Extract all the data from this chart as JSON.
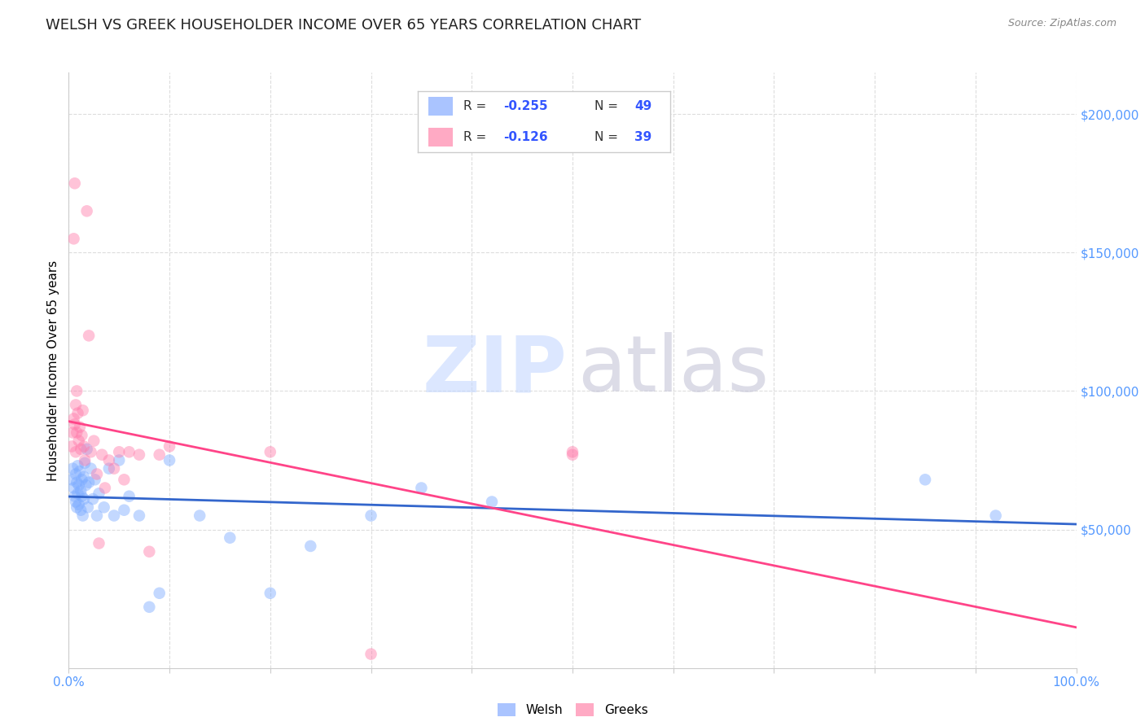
{
  "title": "WELSH VS GREEK HOUSEHOLDER INCOME OVER 65 YEARS CORRELATION CHART",
  "source": "Source: ZipAtlas.com",
  "ylabel": "Householder Income Over 65 years",
  "y_tick_labels": [
    "$50,000",
    "$100,000",
    "$150,000",
    "$200,000"
  ],
  "y_tick_values": [
    50000,
    100000,
    150000,
    200000
  ],
  "y_tick_color": "#5599ff",
  "ylim": [
    0,
    215000
  ],
  "xlim": [
    0,
    1.0
  ],
  "welsh_R": -0.255,
  "welsh_N": 49,
  "greek_R": -0.126,
  "greek_N": 39,
  "welsh_color": "#7aaaff",
  "greek_color": "#ff7aaa",
  "welsh_line_color": "#3366cc",
  "greek_line_color": "#ff4488",
  "marker_size": 110,
  "marker_alpha": 0.45,
  "legend_color_welsh": "#aac4ff",
  "legend_color_greek": "#ffaac4",
  "watermark_color_zip": "#c5d8ff",
  "watermark_color_atlas": "#c5c5d8",
  "welsh_x": [
    0.003,
    0.004,
    0.005,
    0.006,
    0.007,
    0.007,
    0.008,
    0.008,
    0.009,
    0.009,
    0.01,
    0.01,
    0.011,
    0.012,
    0.012,
    0.013,
    0.013,
    0.014,
    0.015,
    0.015,
    0.016,
    0.017,
    0.018,
    0.019,
    0.02,
    0.022,
    0.024,
    0.026,
    0.028,
    0.03,
    0.035,
    0.04,
    0.045,
    0.05,
    0.055,
    0.06,
    0.07,
    0.08,
    0.09,
    0.1,
    0.13,
    0.16,
    0.2,
    0.24,
    0.3,
    0.35,
    0.42,
    0.85,
    0.92
  ],
  "welsh_y": [
    68000,
    72000,
    65000,
    62000,
    70000,
    60000,
    67000,
    58000,
    73000,
    63000,
    66000,
    59000,
    71000,
    64000,
    57000,
    68000,
    62000,
    55000,
    69000,
    61000,
    74000,
    66000,
    79000,
    58000,
    67000,
    72000,
    61000,
    68000,
    55000,
    63000,
    58000,
    72000,
    55000,
    75000,
    57000,
    62000,
    55000,
    22000,
    27000,
    75000,
    55000,
    47000,
    27000,
    44000,
    55000,
    65000,
    60000,
    68000,
    55000
  ],
  "greek_x": [
    0.003,
    0.004,
    0.005,
    0.006,
    0.007,
    0.007,
    0.008,
    0.009,
    0.01,
    0.011,
    0.012,
    0.013,
    0.014,
    0.015,
    0.016,
    0.018,
    0.02,
    0.022,
    0.025,
    0.028,
    0.03,
    0.033,
    0.036,
    0.04,
    0.045,
    0.05,
    0.055,
    0.06,
    0.07,
    0.08,
    0.09,
    0.1,
    0.2,
    0.3,
    0.5,
    0.005,
    0.006,
    0.008,
    0.5
  ],
  "greek_y": [
    80000,
    85000,
    90000,
    88000,
    78000,
    95000,
    100000,
    92000,
    82000,
    87000,
    79000,
    84000,
    93000,
    80000,
    75000,
    165000,
    120000,
    78000,
    82000,
    70000,
    45000,
    77000,
    65000,
    75000,
    72000,
    78000,
    68000,
    78000,
    77000,
    42000,
    77000,
    80000,
    78000,
    5000,
    78000,
    155000,
    175000,
    85000,
    77000
  ],
  "grid_color": "#dddddd",
  "background_color": "#ffffff",
  "title_fontsize": 13,
  "axis_label_fontsize": 11,
  "tick_fontsize": 11,
  "source_fontsize": 9
}
